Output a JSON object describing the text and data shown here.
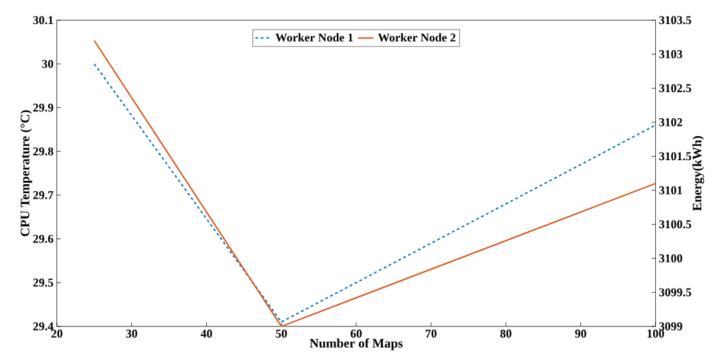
{
  "chart_data": {
    "type": "line",
    "xlabel": "Number of Maps",
    "ylabel": "CPU Temperature (°C)",
    "y2label": "Energy(kWh)",
    "x": [
      25,
      50,
      100
    ],
    "series": [
      {
        "name": "Worker Node 1",
        "color": "#0072bd",
        "values": [
          30.0,
          29.41,
          29.86
        ],
        "line_style": "dashed"
      },
      {
        "name": "Worker Node 2",
        "color": "#d95319",
        "values": [
          3103.2,
          3099,
          3101.1
        ],
        "axis": "y2",
        "line_style": "solid"
      }
    ],
    "xlim": [
      20,
      100
    ],
    "xticks": [
      20,
      30,
      40,
      50,
      60,
      70,
      80,
      90,
      100
    ],
    "ylim": [
      29.4,
      30.1
    ],
    "yticks": [
      29.4,
      29.5,
      29.6,
      29.7,
      29.8,
      29.9,
      30,
      30.1
    ],
    "y2lim": [
      3099,
      3103.5
    ],
    "y2ticks": [
      3099,
      3099.5,
      3100,
      3100.5,
      3101,
      3101.5,
      3102,
      3102.5,
      3103,
      3103.5
    ],
    "grid": false,
    "legend": "top",
    "marker": "none"
  }
}
